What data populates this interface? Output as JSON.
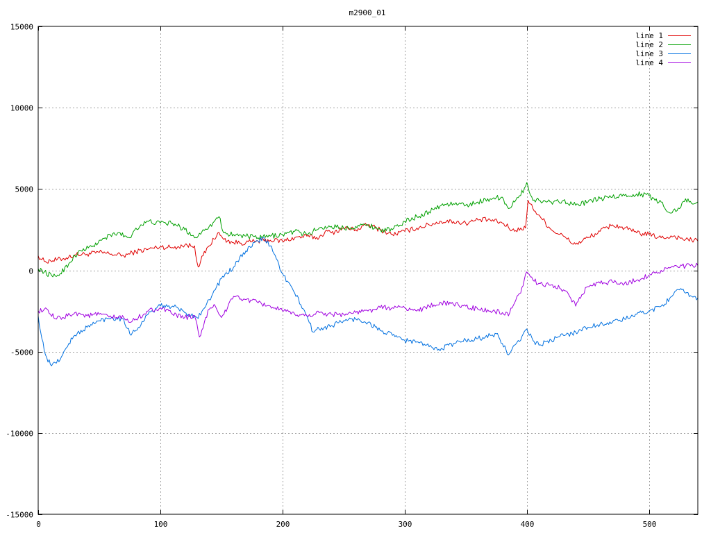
{
  "chart_data": {
    "type": "line",
    "title": "m2900_01",
    "xlabel": "",
    "ylabel": "",
    "xlim": [
      0,
      540
    ],
    "ylim": [
      -15000,
      15000
    ],
    "x_ticks": [
      0,
      100,
      200,
      300,
      400,
      500
    ],
    "y_ticks": [
      -15000,
      -10000,
      -5000,
      0,
      5000,
      10000,
      15000
    ],
    "grid": true,
    "legend_position": "top-right",
    "series": [
      {
        "name": "line 1",
        "color": "#e00000",
        "points": [
          [
            0,
            900
          ],
          [
            5,
            550
          ],
          [
            10,
            600
          ],
          [
            20,
            700
          ],
          [
            30,
            950
          ],
          [
            40,
            1000
          ],
          [
            50,
            1100
          ],
          [
            60,
            1000
          ],
          [
            70,
            900
          ],
          [
            80,
            1150
          ],
          [
            90,
            1300
          ],
          [
            100,
            1450
          ],
          [
            110,
            1400
          ],
          [
            120,
            1550
          ],
          [
            128,
            1500
          ],
          [
            131,
            200
          ],
          [
            135,
            900
          ],
          [
            140,
            1500
          ],
          [
            147,
            2300
          ],
          [
            152,
            1900
          ],
          [
            160,
            1700
          ],
          [
            170,
            1700
          ],
          [
            180,
            1800
          ],
          [
            190,
            1850
          ],
          [
            200,
            1800
          ],
          [
            210,
            2000
          ],
          [
            220,
            2100
          ],
          [
            230,
            2000
          ],
          [
            235,
            2400
          ],
          [
            240,
            2300
          ],
          [
            250,
            2600
          ],
          [
            260,
            2500
          ],
          [
            270,
            2800
          ],
          [
            280,
            2500
          ],
          [
            290,
            2200
          ],
          [
            300,
            2400
          ],
          [
            310,
            2600
          ],
          [
            320,
            2800
          ],
          [
            330,
            3000
          ],
          [
            340,
            3000
          ],
          [
            350,
            2900
          ],
          [
            360,
            3100
          ],
          [
            370,
            3100
          ],
          [
            380,
            2900
          ],
          [
            390,
            2400
          ],
          [
            395,
            2600
          ],
          [
            399,
            2600
          ],
          [
            401,
            4300
          ],
          [
            405,
            3800
          ],
          [
            410,
            3400
          ],
          [
            420,
            2500
          ],
          [
            430,
            2100
          ],
          [
            435,
            1800
          ],
          [
            440,
            1600
          ],
          [
            450,
            2000
          ],
          [
            460,
            2400
          ],
          [
            470,
            2800
          ],
          [
            480,
            2600
          ],
          [
            490,
            2300
          ],
          [
            500,
            2200
          ],
          [
            510,
            2000
          ],
          [
            520,
            2100
          ],
          [
            530,
            1900
          ],
          [
            540,
            1800
          ]
        ]
      },
      {
        "name": "line 2",
        "color": "#00a000",
        "points": [
          [
            0,
            100
          ],
          [
            5,
            -100
          ],
          [
            12,
            -400
          ],
          [
            18,
            -200
          ],
          [
            25,
            400
          ],
          [
            30,
            900
          ],
          [
            35,
            1200
          ],
          [
            45,
            1500
          ],
          [
            55,
            2000
          ],
          [
            65,
            2300
          ],
          [
            75,
            2000
          ],
          [
            80,
            2600
          ],
          [
            90,
            3000
          ],
          [
            100,
            2900
          ],
          [
            110,
            2900
          ],
          [
            120,
            2500
          ],
          [
            130,
            2000
          ],
          [
            135,
            2500
          ],
          [
            140,
            2700
          ],
          [
            145,
            3100
          ],
          [
            148,
            3300
          ],
          [
            152,
            2300
          ],
          [
            160,
            2200
          ],
          [
            170,
            2100
          ],
          [
            180,
            2000
          ],
          [
            190,
            2100
          ],
          [
            200,
            2200
          ],
          [
            210,
            2400
          ],
          [
            220,
            2200
          ],
          [
            230,
            2600
          ],
          [
            240,
            2700
          ],
          [
            250,
            2600
          ],
          [
            260,
            2700
          ],
          [
            270,
            2800
          ],
          [
            280,
            2500
          ],
          [
            290,
            2500
          ],
          [
            300,
            3000
          ],
          [
            310,
            3300
          ],
          [
            320,
            3600
          ],
          [
            330,
            4000
          ],
          [
            340,
            4100
          ],
          [
            350,
            4000
          ],
          [
            360,
            4200
          ],
          [
            370,
            4400
          ],
          [
            380,
            4500
          ],
          [
            385,
            3800
          ],
          [
            390,
            4200
          ],
          [
            395,
            4600
          ],
          [
            400,
            5400
          ],
          [
            405,
            4300
          ],
          [
            410,
            4300
          ],
          [
            420,
            4200
          ],
          [
            430,
            4300
          ],
          [
            440,
            4000
          ],
          [
            450,
            4200
          ],
          [
            460,
            4400
          ],
          [
            470,
            4500
          ],
          [
            480,
            4600
          ],
          [
            490,
            4700
          ],
          [
            500,
            4600
          ],
          [
            505,
            4300
          ],
          [
            510,
            4200
          ],
          [
            515,
            3600
          ],
          [
            520,
            3700
          ],
          [
            525,
            3800
          ],
          [
            530,
            4400
          ],
          [
            535,
            4100
          ],
          [
            540,
            4200
          ]
        ]
      },
      {
        "name": "line 3",
        "color": "#0070e0",
        "points": [
          [
            0,
            -2800
          ],
          [
            3,
            -4200
          ],
          [
            6,
            -5200
          ],
          [
            10,
            -5800
          ],
          [
            15,
            -5700
          ],
          [
            20,
            -5200
          ],
          [
            25,
            -4500
          ],
          [
            30,
            -4000
          ],
          [
            40,
            -3500
          ],
          [
            50,
            -3100
          ],
          [
            60,
            -2900
          ],
          [
            70,
            -3000
          ],
          [
            75,
            -3900
          ],
          [
            80,
            -3700
          ],
          [
            90,
            -2700
          ],
          [
            100,
            -2200
          ],
          [
            110,
            -2200
          ],
          [
            120,
            -2600
          ],
          [
            130,
            -2900
          ],
          [
            135,
            -2400
          ],
          [
            140,
            -1800
          ],
          [
            145,
            -1200
          ],
          [
            150,
            -500
          ],
          [
            160,
            200
          ],
          [
            170,
            1200
          ],
          [
            180,
            1800
          ],
          [
            185,
            2000
          ],
          [
            190,
            1500
          ],
          [
            195,
            700
          ],
          [
            200,
            -200
          ],
          [
            210,
            -1400
          ],
          [
            220,
            -2800
          ],
          [
            225,
            -3800
          ],
          [
            230,
            -3600
          ],
          [
            240,
            -3400
          ],
          [
            250,
            -3100
          ],
          [
            260,
            -3000
          ],
          [
            270,
            -3200
          ],
          [
            280,
            -3700
          ],
          [
            290,
            -4000
          ],
          [
            300,
            -4300
          ],
          [
            310,
            -4400
          ],
          [
            320,
            -4700
          ],
          [
            330,
            -4800
          ],
          [
            340,
            -4500
          ],
          [
            350,
            -4300
          ],
          [
            360,
            -4200
          ],
          [
            370,
            -4000
          ],
          [
            375,
            -3900
          ],
          [
            380,
            -4500
          ],
          [
            385,
            -5200
          ],
          [
            390,
            -4600
          ],
          [
            395,
            -4300
          ],
          [
            400,
            -3600
          ],
          [
            405,
            -4300
          ],
          [
            410,
            -4600
          ],
          [
            420,
            -4300
          ],
          [
            430,
            -4000
          ],
          [
            440,
            -3800
          ],
          [
            450,
            -3500
          ],
          [
            460,
            -3300
          ],
          [
            470,
            -3200
          ],
          [
            480,
            -3000
          ],
          [
            490,
            -2700
          ],
          [
            500,
            -2500
          ],
          [
            510,
            -2200
          ],
          [
            520,
            -1500
          ],
          [
            525,
            -1200
          ],
          [
            530,
            -1400
          ],
          [
            535,
            -1600
          ],
          [
            540,
            -1700
          ]
        ]
      },
      {
        "name": "line 4",
        "color": "#a000e0",
        "points": [
          [
            0,
            -2500
          ],
          [
            5,
            -2400
          ],
          [
            10,
            -2700
          ],
          [
            15,
            -3000
          ],
          [
            20,
            -2900
          ],
          [
            30,
            -2600
          ],
          [
            40,
            -2800
          ],
          [
            50,
            -2700
          ],
          [
            60,
            -2900
          ],
          [
            70,
            -2900
          ],
          [
            75,
            -3200
          ],
          [
            80,
            -3000
          ],
          [
            90,
            -2500
          ],
          [
            100,
            -2300
          ],
          [
            110,
            -2700
          ],
          [
            120,
            -2900
          ],
          [
            128,
            -2800
          ],
          [
            132,
            -4100
          ],
          [
            136,
            -3200
          ],
          [
            140,
            -2400
          ],
          [
            145,
            -2200
          ],
          [
            150,
            -2900
          ],
          [
            155,
            -2300
          ],
          [
            160,
            -1600
          ],
          [
            170,
            -1800
          ],
          [
            180,
            -2000
          ],
          [
            190,
            -2200
          ],
          [
            200,
            -2500
          ],
          [
            210,
            -2700
          ],
          [
            220,
            -2800
          ],
          [
            230,
            -2600
          ],
          [
            240,
            -2700
          ],
          [
            250,
            -2700
          ],
          [
            260,
            -2600
          ],
          [
            270,
            -2500
          ],
          [
            280,
            -2300
          ],
          [
            290,
            -2300
          ],
          [
            300,
            -2300
          ],
          [
            310,
            -2500
          ],
          [
            320,
            -2200
          ],
          [
            330,
            -2000
          ],
          [
            340,
            -2100
          ],
          [
            350,
            -2200
          ],
          [
            360,
            -2400
          ],
          [
            370,
            -2500
          ],
          [
            380,
            -2600
          ],
          [
            385,
            -2800
          ],
          [
            390,
            -2000
          ],
          [
            395,
            -1400
          ],
          [
            400,
            -100
          ],
          [
            405,
            -600
          ],
          [
            410,
            -800
          ],
          [
            420,
            -900
          ],
          [
            430,
            -1200
          ],
          [
            435,
            -1600
          ],
          [
            440,
            -2200
          ],
          [
            445,
            -1500
          ],
          [
            450,
            -1000
          ],
          [
            460,
            -800
          ],
          [
            470,
            -700
          ],
          [
            480,
            -800
          ],
          [
            490,
            -600
          ],
          [
            500,
            -300
          ],
          [
            510,
            0
          ],
          [
            520,
            200
          ],
          [
            530,
            250
          ],
          [
            540,
            300
          ]
        ]
      }
    ]
  }
}
